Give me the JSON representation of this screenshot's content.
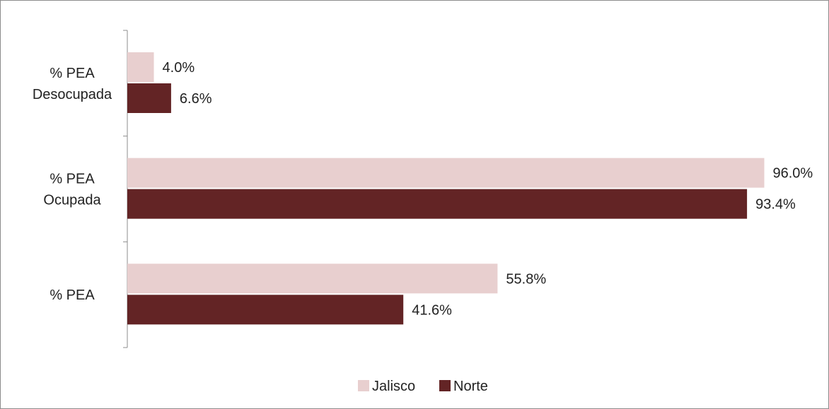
{
  "chart_data": {
    "type": "bar",
    "orientation": "horizontal",
    "categories": [
      [
        "% PEA",
        "Desocupada"
      ],
      [
        "% PEA",
        "Ocupada"
      ],
      [
        "% PEA"
      ]
    ],
    "series": [
      {
        "name": "Jalisco",
        "values": [
          4.0,
          96.0,
          55.8
        ],
        "labels": [
          "4.0%",
          "96.0%",
          "55.8%"
        ],
        "color": "#e8cfcf"
      },
      {
        "name": "Norte",
        "values": [
          6.6,
          93.4,
          41.6
        ],
        "labels": [
          "6.6%",
          "93.4%",
          "41.6%"
        ],
        "color": "#632425"
      }
    ],
    "xlim": [
      0,
      100
    ],
    "grid": false,
    "legend_position": "bottom",
    "title": "",
    "xlabel": "",
    "ylabel": ""
  },
  "colors": {
    "frame": "#8c8c8c",
    "axis": "#8c8c8c"
  }
}
